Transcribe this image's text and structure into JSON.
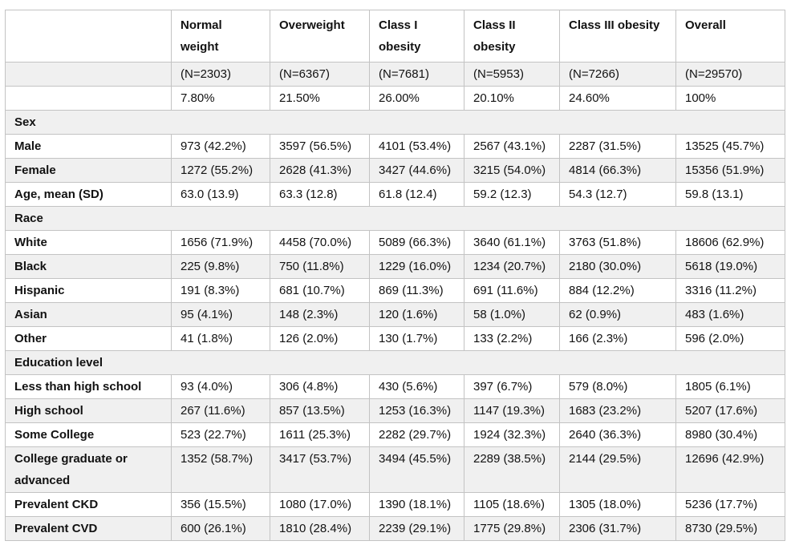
{
  "colors": {
    "stripe": "#f0f0f0",
    "border": "#c3c3c3",
    "text": "#121212",
    "background": "#ffffff"
  },
  "chart_data": {
    "type": "table",
    "title": "",
    "legend": false,
    "columns": [
      "",
      "Normal weight",
      "Overweight",
      "Class I obesity",
      "Class II obesity",
      "Class III obesity",
      "Overall"
    ],
    "rows": [
      {
        "type": "data",
        "label": "",
        "values": [
          "(N=2303)",
          "(N=6367)",
          "(N=7681)",
          "(N=5953)",
          "(N=7266)",
          "(N=29570)"
        ]
      },
      {
        "type": "data",
        "label": "",
        "values": [
          "7.80%",
          "21.50%",
          "26.00%",
          "20.10%",
          "24.60%",
          "100%"
        ]
      },
      {
        "type": "section",
        "label": "Sex"
      },
      {
        "type": "data",
        "label": "Male",
        "values": [
          "973 (42.2%)",
          "3597 (56.5%)",
          "4101 (53.4%)",
          "2567 (43.1%)",
          "2287 (31.5%)",
          "13525 (45.7%)"
        ]
      },
      {
        "type": "data",
        "label": "Female",
        "values": [
          "1272 (55.2%)",
          "2628 (41.3%)",
          "3427 (44.6%)",
          "3215 (54.0%)",
          "4814 (66.3%)",
          "15356 (51.9%)"
        ]
      },
      {
        "type": "data",
        "label": "Age, mean (SD)",
        "values": [
          "63.0 (13.9)",
          "63.3 (12.8)",
          "61.8 (12.4)",
          "59.2 (12.3)",
          "54.3 (12.7)",
          "59.8 (13.1)"
        ]
      },
      {
        "type": "section",
        "label": "Race"
      },
      {
        "type": "data",
        "label": "White",
        "values": [
          "1656 (71.9%)",
          "4458 (70.0%)",
          "5089 (66.3%)",
          "3640 (61.1%)",
          "3763 (51.8%)",
          "18606 (62.9%)"
        ]
      },
      {
        "type": "data",
        "label": "Black",
        "values": [
          "225 (9.8%)",
          "750 (11.8%)",
          "1229 (16.0%)",
          "1234 (20.7%)",
          "2180 (30.0%)",
          "5618 (19.0%)"
        ]
      },
      {
        "type": "data",
        "label": "Hispanic",
        "values": [
          "191 (8.3%)",
          "681 (10.7%)",
          "869 (11.3%)",
          "691 (11.6%)",
          "884 (12.2%)",
          "3316 (11.2%)"
        ]
      },
      {
        "type": "data",
        "label": "Asian",
        "values": [
          "95 (4.1%)",
          "148 (2.3%)",
          "120 (1.6%)",
          "58 (1.0%)",
          "62 (0.9%)",
          "483 (1.6%)"
        ]
      },
      {
        "type": "data",
        "label": "Other",
        "values": [
          "41 (1.8%)",
          "126 (2.0%)",
          "130 (1.7%)",
          "133 (2.2%)",
          "166 (2.3%)",
          "596 (2.0%)"
        ]
      },
      {
        "type": "section",
        "label": "Education level"
      },
      {
        "type": "data",
        "label": "Less than high school",
        "values": [
          "93 (4.0%)",
          "306 (4.8%)",
          "430 (5.6%)",
          "397 (6.7%)",
          "579 (8.0%)",
          "1805 (6.1%)"
        ]
      },
      {
        "type": "data",
        "label": "High school",
        "values": [
          "267 (11.6%)",
          "857 (13.5%)",
          "1253 (16.3%)",
          "1147 (19.3%)",
          "1683 (23.2%)",
          "5207 (17.6%)"
        ]
      },
      {
        "type": "data",
        "label": "Some College",
        "values": [
          "523 (22.7%)",
          "1611 (25.3%)",
          "2282 (29.7%)",
          "1924 (32.3%)",
          "2640 (36.3%)",
          "8980 (30.4%)"
        ]
      },
      {
        "type": "data",
        "label": "College graduate or advanced",
        "values": [
          "1352 (58.7%)",
          "3417 (53.7%)",
          "3494 (45.5%)",
          "2289 (38.5%)",
          "2144 (29.5%)",
          "12696 (42.9%)"
        ]
      },
      {
        "type": "data",
        "label": "Prevalent CKD",
        "values": [
          "356 (15.5%)",
          "1080 (17.0%)",
          "1390 (18.1%)",
          "1105 (18.6%)",
          "1305 (18.0%)",
          "5236 (17.7%)"
        ]
      },
      {
        "type": "data",
        "label": "Prevalent CVD",
        "values": [
          "600 (26.1%)",
          "1810 (28.4%)",
          "2239 (29.1%)",
          "1775 (29.8%)",
          "2306 (31.7%)",
          "8730 (29.5%)"
        ]
      }
    ]
  }
}
